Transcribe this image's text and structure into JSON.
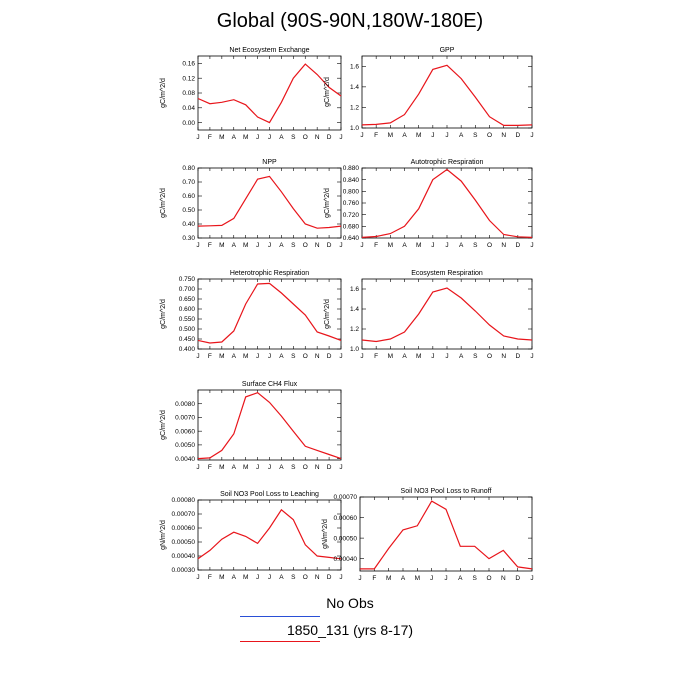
{
  "title": "Global (90S-90N,180W-180E)",
  "line_color": "#e8151b",
  "legend": {
    "obs_label": "No Obs",
    "obs_color": "#2a4fd6",
    "model_label": "1850_131 (yrs 8-17)",
    "model_color": "#e8151b"
  },
  "chart_data": [
    {
      "type": "line",
      "title": "Net Ecosystem Exchange",
      "ylabel": "gC/m^2/d",
      "categories": [
        "J",
        "F",
        "M",
        "A",
        "M",
        "J",
        "J",
        "A",
        "S",
        "O",
        "N",
        "D",
        "J"
      ],
      "ylim": [
        -0.02,
        0.18
      ],
      "yticks": [
        "0.00",
        "0.04",
        "0.08",
        "0.12",
        "0.16"
      ],
      "series": [
        {
          "values": [
            0.065,
            0.051,
            0.055,
            0.062,
            0.048,
            0.015,
            0.0,
            0.055,
            0.12,
            0.158,
            0.13,
            0.095,
            0.072
          ]
        }
      ]
    },
    {
      "type": "line",
      "title": "GPP",
      "ylabel": "gC/m^2/d",
      "categories": [
        "J",
        "F",
        "M",
        "A",
        "M",
        "J",
        "J",
        "A",
        "S",
        "O",
        "N",
        "D",
        "J"
      ],
      "ylim": [
        1.0,
        1.7
      ],
      "yticks": [
        "1.0",
        "1.2",
        "1.4",
        "1.6"
      ],
      "series": [
        {
          "values": [
            1.03,
            1.035,
            1.05,
            1.13,
            1.33,
            1.57,
            1.61,
            1.48,
            1.3,
            1.11,
            1.025,
            1.025,
            1.03
          ]
        }
      ]
    },
    {
      "type": "line",
      "title": "NPP",
      "ylabel": "gC/m^2/d",
      "categories": [
        "J",
        "F",
        "M",
        "A",
        "M",
        "J",
        "J",
        "A",
        "S",
        "O",
        "N",
        "D",
        "J"
      ],
      "ylim": [
        0.3,
        0.8
      ],
      "yticks": [
        "0.30",
        "0.40",
        "0.50",
        "0.60",
        "0.70",
        "0.80"
      ],
      "series": [
        {
          "values": [
            0.385,
            0.387,
            0.39,
            0.44,
            0.58,
            0.72,
            0.74,
            0.63,
            0.51,
            0.4,
            0.37,
            0.375,
            0.385
          ]
        }
      ]
    },
    {
      "type": "line",
      "title": "Autotrophic Respiration",
      "ylabel": "gC/m^2/d",
      "categories": [
        "J",
        "F",
        "M",
        "A",
        "M",
        "J",
        "J",
        "A",
        "S",
        "O",
        "N",
        "D",
        "J"
      ],
      "ylim": [
        0.64,
        0.88
      ],
      "yticks": [
        "0.640",
        "0.680",
        "0.720",
        "0.760",
        "0.800",
        "0.840",
        "0.880"
      ],
      "series": [
        {
          "values": [
            0.642,
            0.645,
            0.655,
            0.68,
            0.74,
            0.84,
            0.875,
            0.835,
            0.77,
            0.7,
            0.652,
            0.644,
            0.642
          ]
        }
      ]
    },
    {
      "type": "line",
      "title": "Heterotrophic Respiration",
      "ylabel": "gC/m^2/d",
      "categories": [
        "J",
        "F",
        "M",
        "A",
        "M",
        "J",
        "J",
        "A",
        "S",
        "O",
        "N",
        "D",
        "J"
      ],
      "ylim": [
        0.4,
        0.75
      ],
      "yticks": [
        "0.400",
        "0.450",
        "0.500",
        "0.550",
        "0.600",
        "0.650",
        "0.700",
        "0.750"
      ],
      "series": [
        {
          "values": [
            0.443,
            0.43,
            0.435,
            0.49,
            0.625,
            0.725,
            0.728,
            0.68,
            0.625,
            0.57,
            0.485,
            0.465,
            0.443
          ]
        }
      ]
    },
    {
      "type": "line",
      "title": "Ecosystem Respiration",
      "ylabel": "gC/m^2/d",
      "categories": [
        "J",
        "F",
        "M",
        "A",
        "M",
        "J",
        "J",
        "A",
        "S",
        "O",
        "N",
        "D",
        "J"
      ],
      "ylim": [
        1.0,
        1.7
      ],
      "yticks": [
        "1.0",
        "1.2",
        "1.4",
        "1.6"
      ],
      "series": [
        {
          "values": [
            1.09,
            1.075,
            1.1,
            1.17,
            1.35,
            1.57,
            1.61,
            1.51,
            1.38,
            1.24,
            1.13,
            1.1,
            1.09
          ]
        }
      ]
    },
    {
      "type": "line",
      "title": "Surface CH4 Flux",
      "ylabel": "gC/m^2/d",
      "categories": [
        "J",
        "F",
        "M",
        "A",
        "M",
        "J",
        "J",
        "A",
        "S",
        "O",
        "N",
        "D",
        "J"
      ],
      "ylim": [
        0.0039,
        0.009
      ],
      "yticks": [
        "0.0040",
        "0.0050",
        "0.0060",
        "0.0070",
        "0.0080"
      ],
      "series": [
        {
          "values": [
            0.004,
            0.00405,
            0.0046,
            0.0058,
            0.0085,
            0.0088,
            0.0081,
            0.0071,
            0.006,
            0.0049,
            0.0046,
            0.0043,
            0.004
          ]
        }
      ]
    },
    {
      "type": "line",
      "title": "Soil NO3 Pool Loss to Leaching",
      "ylabel": "gN/m^2/d",
      "categories": [
        "J",
        "F",
        "M",
        "A",
        "M",
        "J",
        "J",
        "A",
        "S",
        "O",
        "N",
        "D",
        "J"
      ],
      "ylim": [
        0.0003,
        0.0008
      ],
      "yticks": [
        "0.00030",
        "0.00040",
        "0.00050",
        "0.00060",
        "0.00070",
        "0.00080"
      ],
      "series": [
        {
          "values": [
            0.00038,
            0.00044,
            0.00052,
            0.00057,
            0.00054,
            0.00049,
            0.0006,
            0.00073,
            0.00066,
            0.00048,
            0.0004,
            0.00039,
            0.00038
          ]
        }
      ]
    },
    {
      "type": "line",
      "title": "Soil NO3 Pool Loss to Runoff",
      "ylabel": "gN/m^2/d",
      "categories": [
        "J",
        "F",
        "M",
        "A",
        "M",
        "J",
        "J",
        "A",
        "S",
        "O",
        "N",
        "D",
        "J"
      ],
      "ylim": [
        0.00034,
        0.0007
      ],
      "yticks": [
        "0.00040",
        "0.00050",
        "0.00060",
        "0.00070"
      ],
      "series": [
        {
          "values": [
            0.00035,
            0.00035,
            0.00045,
            0.00054,
            0.00056,
            0.00068,
            0.00064,
            0.00046,
            0.00046,
            0.0004,
            0.00044,
            0.00036,
            0.00035
          ]
        }
      ]
    }
  ]
}
